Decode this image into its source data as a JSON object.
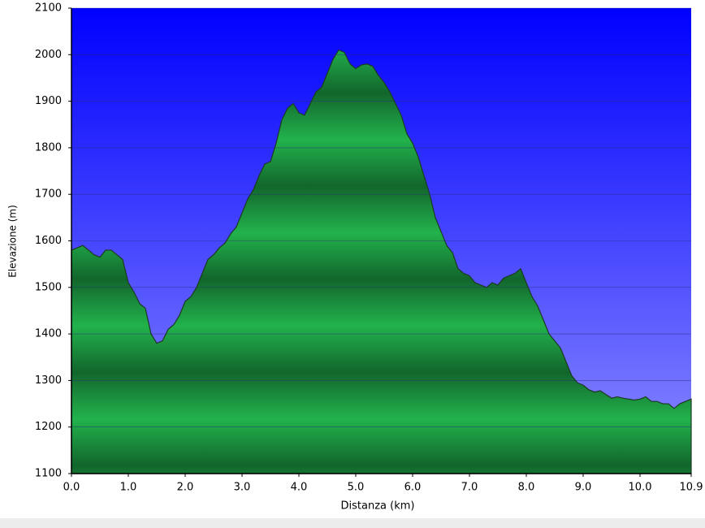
{
  "chart_data": {
    "type": "area",
    "x_label": "Distanza (km)",
    "y_label": "Elevazione (m)",
    "x": [
      0,
      0.1,
      0.2,
      0.3,
      0.4,
      0.5,
      0.6,
      0.7,
      0.8,
      0.9,
      1.0,
      1.1,
      1.2,
      1.3,
      1.4,
      1.5,
      1.6,
      1.7,
      1.8,
      1.9,
      2.0,
      2.1,
      2.2,
      2.3,
      2.4,
      2.5,
      2.6,
      2.7,
      2.8,
      2.9,
      3.0,
      3.1,
      3.2,
      3.3,
      3.4,
      3.5,
      3.6,
      3.7,
      3.8,
      3.9,
      4.0,
      4.1,
      4.2,
      4.3,
      4.4,
      4.5,
      4.6,
      4.7,
      4.8,
      4.9,
      5.0,
      5.1,
      5.2,
      5.3,
      5.4,
      5.5,
      5.6,
      5.7,
      5.8,
      5.9,
      6.0,
      6.1,
      6.2,
      6.3,
      6.4,
      6.5,
      6.6,
      6.7,
      6.8,
      6.9,
      7.0,
      7.1,
      7.2,
      7.3,
      7.4,
      7.5,
      7.6,
      7.7,
      7.8,
      7.9,
      8.0,
      8.1,
      8.2,
      8.3,
      8.4,
      8.5,
      8.6,
      8.7,
      8.8,
      8.9,
      9.0,
      9.1,
      9.2,
      9.3,
      9.4,
      9.5,
      9.6,
      9.7,
      9.8,
      9.9,
      10.0,
      10.1,
      10.2,
      10.3,
      10.4,
      10.5,
      10.6,
      10.7,
      10.8,
      10.9
    ],
    "values": [
      1580,
      1585,
      1590,
      1580,
      1570,
      1565,
      1580,
      1580,
      1570,
      1560,
      1510,
      1490,
      1465,
      1455,
      1400,
      1380,
      1385,
      1410,
      1420,
      1440,
      1470,
      1480,
      1500,
      1530,
      1560,
      1570,
      1585,
      1595,
      1615,
      1630,
      1660,
      1690,
      1710,
      1740,
      1765,
      1770,
      1810,
      1860,
      1885,
      1895,
      1875,
      1870,
      1895,
      1920,
      1930,
      1960,
      1990,
      2010,
      2005,
      1980,
      1970,
      1978,
      1980,
      1975,
      1955,
      1940,
      1920,
      1895,
      1870,
      1830,
      1810,
      1780,
      1740,
      1700,
      1650,
      1620,
      1590,
      1575,
      1540,
      1530,
      1525,
      1510,
      1505,
      1500,
      1510,
      1505,
      1520,
      1525,
      1530,
      1540,
      1510,
      1480,
      1460,
      1430,
      1400,
      1385,
      1370,
      1340,
      1310,
      1295,
      1290,
      1280,
      1275,
      1278,
      1270,
      1262,
      1265,
      1262,
      1260,
      1258,
      1260,
      1265,
      1255,
      1255,
      1250,
      1250,
      1240,
      1250,
      1255,
      1260
    ],
    "color": "#22b24c",
    "xlim": [
      0,
      10.9
    ],
    "xticks": [
      {
        "value": 0,
        "label": "0.0"
      },
      {
        "value": 1,
        "label": "1.0"
      },
      {
        "value": 2,
        "label": "2.0"
      },
      {
        "value": 3,
        "label": "3.0"
      },
      {
        "value": 4,
        "label": "4.0"
      },
      {
        "value": 5,
        "label": "5.0"
      },
      {
        "value": 6,
        "label": "6.0"
      },
      {
        "value": 7,
        "label": "7.0"
      },
      {
        "value": 8,
        "label": "8.0"
      },
      {
        "value": 9,
        "label": "9.0"
      },
      {
        "value": 10,
        "label": "10.0"
      },
      10.9
    ],
    "ylim": [
      1100,
      2100
    ],
    "yticks": [
      1100,
      1200,
      1300,
      1400,
      1500,
      1600,
      1700,
      1800,
      1900,
      2000,
      2100
    ],
    "grid": true
  }
}
